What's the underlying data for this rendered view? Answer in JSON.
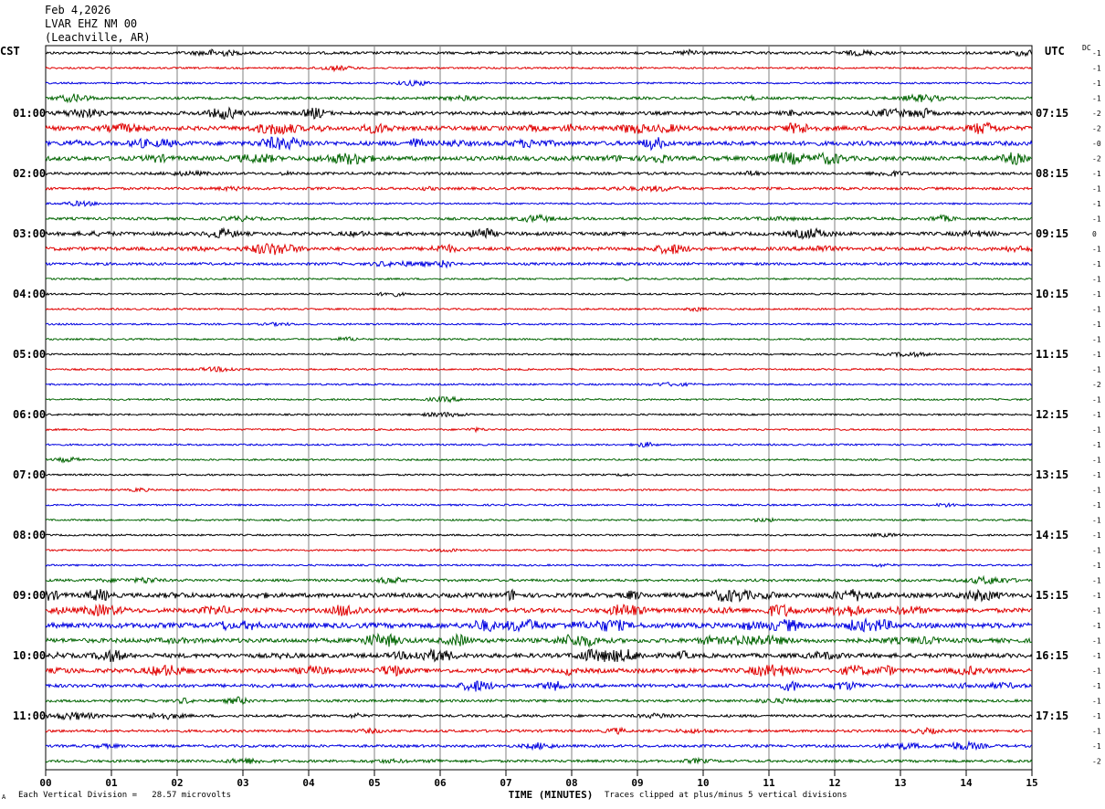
{
  "header": {
    "date": "Feb 4,2026",
    "station": "LVAR EHZ NM 00",
    "location": "(Leachville, AR)"
  },
  "left_zone": "CST",
  "right_zone": "UTC",
  "dc_label": "DC",
  "footer": {
    "scale_note": "Each Vertical Division =   28.57 microvolts",
    "clip_note": "Traces clipped at plus/minus 5 vertical divisions",
    "corner_mark": "A"
  },
  "chart_data": {
    "type": "line",
    "title": "",
    "xlabel": "TIME (MINUTES)",
    "ylabel": "",
    "xlim": [
      0,
      15
    ],
    "x_ticks": [
      "00",
      "01",
      "02",
      "03",
      "04",
      "05",
      "06",
      "07",
      "08",
      "09",
      "10",
      "11",
      "12",
      "13",
      "14",
      "15"
    ],
    "grid": true,
    "trace_minutes": 15,
    "trace_count": 48,
    "colors": [
      "#000000",
      "#e00000",
      "#0000e0",
      "#006400"
    ],
    "left_hour_labels": [
      "01:00",
      "02:00",
      "03:00",
      "04:00",
      "05:00",
      "06:00",
      "07:00",
      "08:00",
      "09:00",
      "10:00",
      "11:00"
    ],
    "right_hour_labels": [
      "07:15",
      "08:15",
      "09:15",
      "10:15",
      "11:15",
      "12:15",
      "13:15",
      "14:15",
      "15:15",
      "16:15",
      "17:15"
    ],
    "dc_offsets": [
      "-1",
      "-1",
      "-1",
      "-1",
      "-2",
      "-2",
      "-0",
      "-2",
      "-1",
      "-1",
      "-1",
      "-1",
      "0",
      "-1",
      "-1",
      "-1",
      "-1",
      "-1",
      "-1",
      "-1",
      "-1",
      "-1",
      "-2",
      "-1",
      "-1",
      "-1",
      "-1",
      "-1",
      "-1",
      "-1",
      "-1",
      "-1",
      "-1",
      "-1",
      "-1",
      "-1",
      "-1",
      "-1",
      "-1",
      "-1",
      "-1",
      "-1",
      "-1",
      "-1",
      "-1",
      "-1",
      "-1",
      "-2"
    ],
    "trace_activity": [
      2,
      1,
      1,
      2,
      3,
      4,
      4,
      4,
      2,
      2,
      1,
      2,
      3,
      3,
      2,
      1,
      1,
      1,
      1,
      1,
      1,
      1,
      1,
      1,
      1,
      1,
      1,
      1,
      1,
      1,
      1,
      1,
      1,
      1,
      1,
      2,
      4,
      4,
      5,
      4,
      4,
      4,
      3,
      2,
      2,
      2,
      2,
      2
    ]
  }
}
